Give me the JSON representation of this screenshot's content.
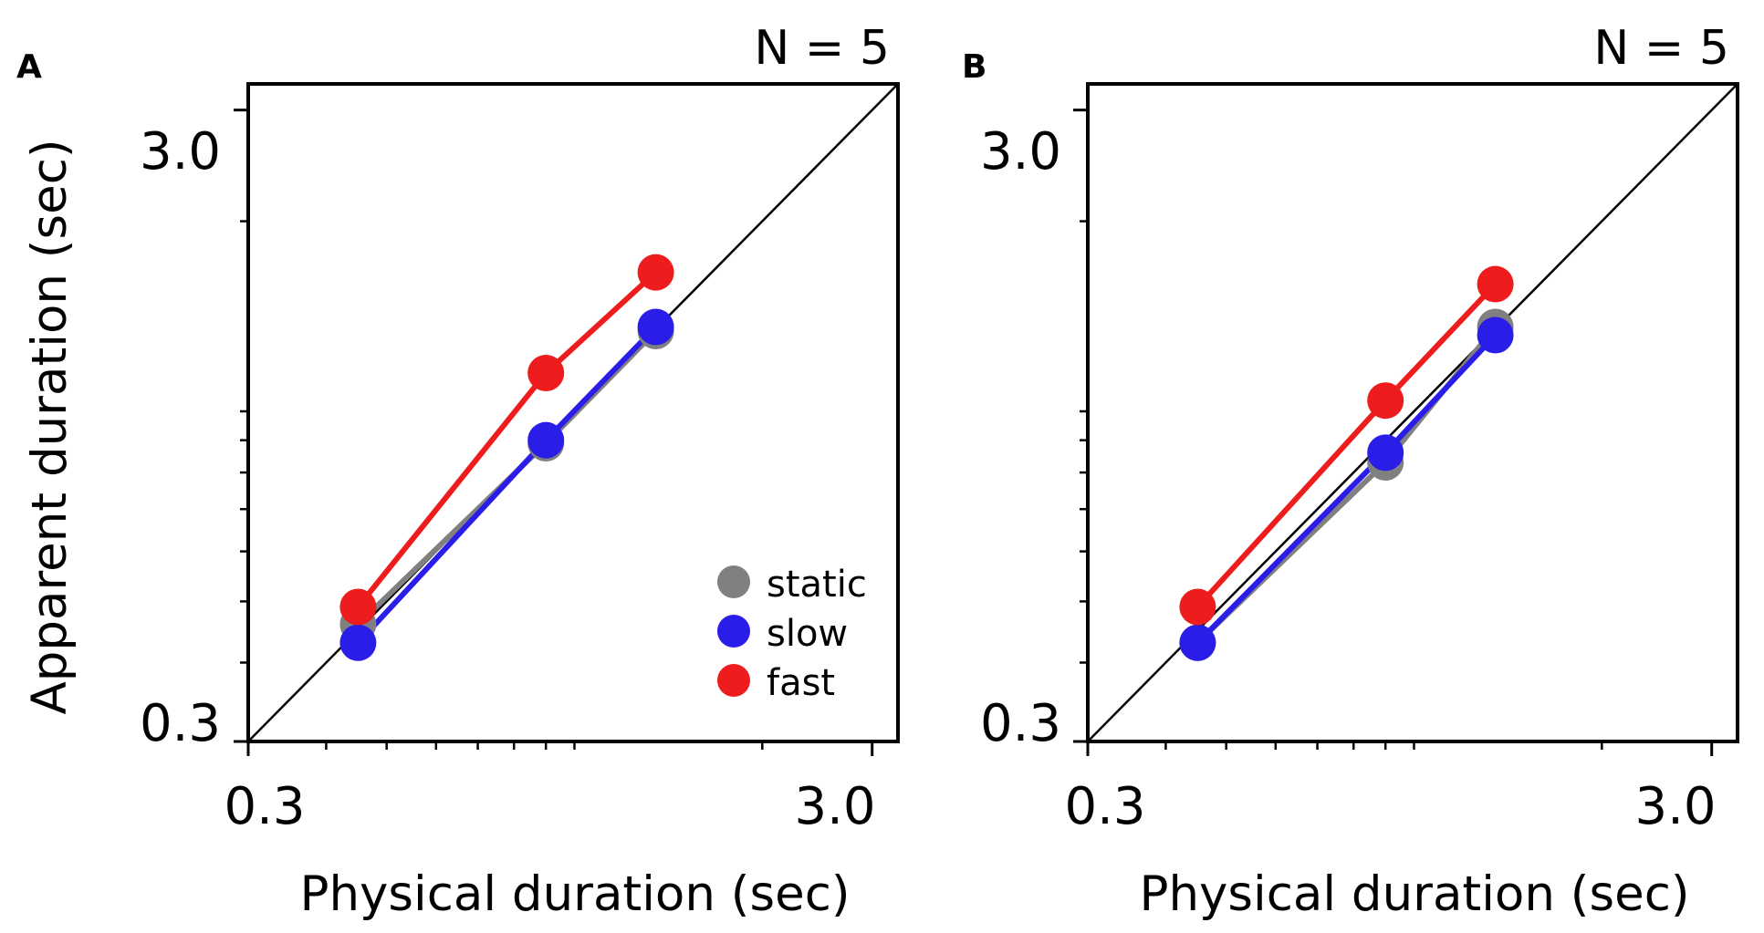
{
  "chart_data": [
    {
      "panel_label": "A",
      "type": "line",
      "scale": "log",
      "annotation": "N = 5",
      "xlabel": "Physical duration (sec)",
      "ylabel": "Apparent duration (sec)",
      "xlim": [
        0.3,
        3.3
      ],
      "ylim": [
        0.3,
        3.3
      ],
      "x_ticklabels": [
        "0.3",
        "3.0"
      ],
      "y_ticklabels": [
        "0.3",
        "3.0"
      ],
      "x_tick_label_values": [
        0.3,
        3.0
      ],
      "y_tick_label_values": [
        0.3,
        3.0
      ],
      "major_ticks": [
        0.3,
        3.0
      ],
      "minor_ticks": [
        0.4,
        0.5,
        0.6,
        0.7,
        0.8,
        0.9,
        1.0,
        2.0
      ],
      "reference_line": "identity",
      "legend": {
        "location": "bottom-right",
        "entries": [
          "static",
          "slow",
          "fast"
        ]
      },
      "series": [
        {
          "name": "static",
          "color": "#808080",
          "x": [
            0.45,
            0.9,
            1.35
          ],
          "y": [
            0.46,
            0.89,
            1.34
          ]
        },
        {
          "name": "slow",
          "color": "#2a1de8",
          "x": [
            0.45,
            0.9,
            1.35
          ],
          "y": [
            0.43,
            0.9,
            1.36
          ]
        },
        {
          "name": "fast",
          "color": "#ee1c1c",
          "x": [
            0.45,
            0.9,
            1.35
          ],
          "y": [
            0.49,
            1.15,
            1.66
          ]
        }
      ]
    },
    {
      "panel_label": "B",
      "type": "line",
      "scale": "log",
      "annotation": "N = 5",
      "xlabel": "Physical duration (sec)",
      "ylabel": "",
      "xlim": [
        0.3,
        3.3
      ],
      "ylim": [
        0.3,
        3.3
      ],
      "x_ticklabels": [
        "0.3",
        "3.0"
      ],
      "y_ticklabels": [
        "0.3",
        "3.0"
      ],
      "x_tick_label_values": [
        0.3,
        3.0
      ],
      "y_tick_label_values": [
        0.3,
        3.0
      ],
      "major_ticks": [
        0.3,
        3.0
      ],
      "minor_ticks": [
        0.4,
        0.5,
        0.6,
        0.7,
        0.8,
        0.9,
        1.0,
        2.0
      ],
      "reference_line": "identity",
      "legend": null,
      "series": [
        {
          "name": "static",
          "color": "#808080",
          "x": [
            0.45,
            0.9,
            1.35
          ],
          "y": [
            0.43,
            0.83,
            1.36
          ]
        },
        {
          "name": "slow",
          "color": "#2a1de8",
          "x": [
            0.45,
            0.9,
            1.35
          ],
          "y": [
            0.43,
            0.86,
            1.32
          ]
        },
        {
          "name": "fast",
          "color": "#ee1c1c",
          "x": [
            0.45,
            0.9,
            1.35
          ],
          "y": [
            0.49,
            1.04,
            1.59
          ]
        }
      ]
    }
  ]
}
